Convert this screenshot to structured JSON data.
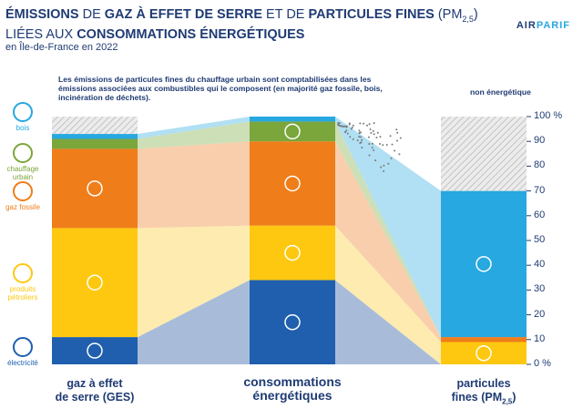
{
  "header": {
    "title_parts": [
      {
        "text": "ÉMISSIONS",
        "bold": true
      },
      {
        "text": " DE ",
        "bold": false
      },
      {
        "text": "GAZ À EFFET DE SERRE",
        "bold": true
      },
      {
        "text": " ET DE ",
        "bold": false
      },
      {
        "text": "PARTICULES FINES",
        "bold": true
      },
      {
        "text": " (PM",
        "bold": false
      },
      {
        "text": "2,5",
        "sub": true
      },
      {
        "text": ")",
        "bold": false
      }
    ],
    "title_line2_parts": [
      {
        "text": "LIÉES AUX ",
        "bold": false
      },
      {
        "text": "CONSOMMATIONS ÉNERGÉTIQUES",
        "bold": true
      }
    ],
    "subtitle": "en Île-de-France en 2022",
    "logo_left": "AIR",
    "logo_right": "PARIF"
  },
  "annotations": {
    "note": "Les émissions de particules fines du chauffage urbain sont comptabilisées dans les émissions associées aux combustibles qui le composent (en majorité gaz fossile, bois, incinération de déchets).",
    "non_energetic": "non énergétique"
  },
  "legend": [
    {
      "key": "bois",
      "label": "bois",
      "color": "#27a8e0",
      "icon": "fire-icon"
    },
    {
      "key": "chauffage_urbain",
      "label": "chauffage urbain",
      "color": "#7aa63b",
      "icon": "radiator-icon"
    },
    {
      "key": "gaz_fossile",
      "label": "gaz fossile",
      "color": "#ef7d1a",
      "icon": "flame-icon"
    },
    {
      "key": "produits_petroliers",
      "label": "produits pétroliers",
      "color": "#fdc80f",
      "icon": "oil-drop-icon"
    },
    {
      "key": "electricite",
      "label": "électricité",
      "color": "#1f5fae",
      "icon": "lightning-icon"
    }
  ],
  "chart_data": {
    "type": "bar",
    "stacked": true,
    "percent_axis": true,
    "ylim": [
      0,
      100
    ],
    "y_ticks": [
      "0 %",
      "10",
      "20",
      "30",
      "40",
      "50",
      "60",
      "70",
      "80",
      "90",
      "100 %"
    ],
    "categories": [
      {
        "label_line1": "gaz à effet",
        "label_line2": "de serre (GES)"
      },
      {
        "label_line1": "consommations",
        "label_line2": "énergétiques"
      },
      {
        "label_line1": "particules",
        "label_line2": "fines (PM",
        "label_sub": "2,5",
        "label_end": ")"
      }
    ],
    "series": [
      {
        "name": "électricité",
        "key": "electricite",
        "color": "#1f5fae",
        "values": [
          11,
          34,
          0
        ]
      },
      {
        "name": "produits pétroliers",
        "key": "produits_petroliers",
        "color": "#fdc80f",
        "values": [
          44,
          22,
          9
        ]
      },
      {
        "name": "gaz fossile",
        "key": "gaz_fossile",
        "color": "#ef7d1a",
        "values": [
          32,
          34,
          2
        ]
      },
      {
        "name": "chauffage urbain",
        "key": "chauffage_urbain",
        "color": "#7aa63b",
        "values": [
          4,
          8,
          0
        ]
      },
      {
        "name": "bois",
        "key": "bois",
        "color": "#27a8e0",
        "values": [
          2,
          2,
          59
        ]
      },
      {
        "name": "non énergétique",
        "key": "non_energetique",
        "color": "#d9d9d9",
        "values": [
          7,
          0,
          30
        ]
      }
    ]
  }
}
